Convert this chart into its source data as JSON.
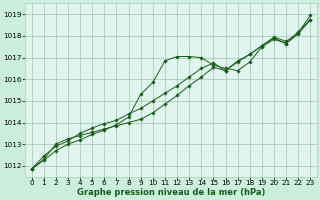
{
  "title": "Graphe pression niveau de la mer (hPa)",
  "bg_color": "#cceedd",
  "plot_bg_color": "#dff5ee",
  "grid_color": "#aaccbb",
  "line_color": "#1a5c1a",
  "marker_color": "#1a5c1a",
  "xlim": [
    -0.5,
    23.5
  ],
  "ylim": [
    1011.5,
    1019.5
  ],
  "xticks": [
    0,
    1,
    2,
    3,
    4,
    5,
    6,
    7,
    8,
    9,
    10,
    11,
    12,
    13,
    14,
    15,
    16,
    17,
    18,
    19,
    20,
    21,
    22,
    23
  ],
  "yticks": [
    1012,
    1013,
    1014,
    1015,
    1016,
    1017,
    1018,
    1019
  ],
  "series1_x": [
    0,
    1,
    2,
    3,
    4,
    5,
    6,
    7,
    8,
    9,
    10,
    11,
    12,
    13,
    14,
    15,
    16,
    17,
    18,
    19,
    20,
    21,
    22,
    23
  ],
  "series1_y": [
    1011.85,
    1012.25,
    1012.7,
    1013.0,
    1013.2,
    1013.45,
    1013.65,
    1013.9,
    1014.25,
    1015.3,
    1015.85,
    1016.85,
    1017.05,
    1017.05,
    1017.0,
    1016.65,
    1016.5,
    1016.4,
    1016.8,
    1017.5,
    1017.85,
    1017.65,
    1018.2,
    1018.75
  ],
  "series2_x": [
    0,
    1,
    2,
    3,
    4,
    5,
    6,
    7,
    8,
    9,
    10,
    11,
    12,
    13,
    14,
    15,
    16,
    17,
    18,
    19,
    20,
    21,
    22,
    23
  ],
  "series2_y": [
    1011.85,
    1012.3,
    1013.0,
    1013.25,
    1013.4,
    1013.55,
    1013.7,
    1013.85,
    1014.0,
    1014.15,
    1014.45,
    1014.85,
    1015.25,
    1015.7,
    1016.1,
    1016.55,
    1016.4,
    1016.8,
    1017.15,
    1017.55,
    1017.9,
    1017.65,
    1018.1,
    1018.75
  ],
  "series3_x": [
    0,
    1,
    2,
    3,
    4,
    5,
    6,
    7,
    8,
    9,
    10,
    11,
    12,
    13,
    14,
    15,
    16,
    17,
    18,
    19,
    20,
    21,
    22,
    23
  ],
  "series3_y": [
    1011.85,
    1012.45,
    1012.9,
    1013.15,
    1013.5,
    1013.75,
    1013.95,
    1014.1,
    1014.4,
    1014.65,
    1015.0,
    1015.35,
    1015.7,
    1016.1,
    1016.5,
    1016.75,
    1016.4,
    1016.85,
    1017.15,
    1017.55,
    1017.95,
    1017.75,
    1018.15,
    1018.95
  ],
  "xlabel_fontsize": 6.0,
  "tick_fontsize": 5.2
}
